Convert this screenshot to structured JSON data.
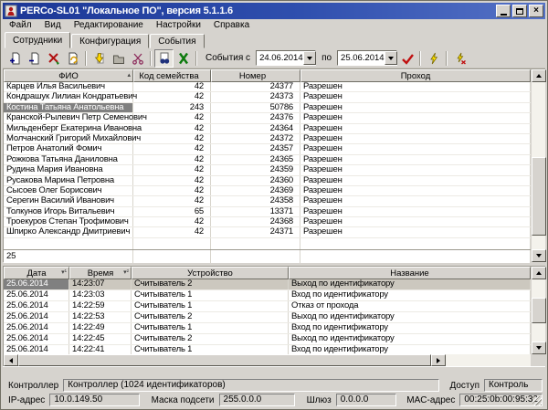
{
  "window": {
    "title": "PERCo-SL01 \"Локальное ПО\", версия 5.1.1.6",
    "controls": [
      "minimize",
      "maximize",
      "close"
    ]
  },
  "menu": {
    "items": [
      "Файл",
      "Вид",
      "Редактирование",
      "Настройки",
      "Справка"
    ]
  },
  "tabs": {
    "items": [
      {
        "label": "Сотрудники",
        "active": true
      },
      {
        "label": "Конфигурация",
        "active": false
      },
      {
        "label": "События",
        "active": false
      }
    ]
  },
  "toolbar": {
    "icons": [
      "add",
      "delete",
      "transfer",
      "edit-card",
      "load",
      "save",
      "cut",
      "show-events",
      "excel-export",
      "apply",
      "poll",
      "stop-poll"
    ],
    "events_from_label": "События с",
    "date_from": "24.06.2014",
    "to_label": "по",
    "date_to": "25.06.2014"
  },
  "employees_table": {
    "columns": [
      {
        "label": "ФИО",
        "sort": "▴"
      },
      {
        "label": "Код семейства",
        "sort": ""
      },
      {
        "label": "Номер",
        "sort": ""
      },
      {
        "label": "Проход",
        "sort": ""
      }
    ],
    "rows": [
      [
        "Карцев Илья Васильевич",
        "42",
        "24377",
        "Разрешен"
      ],
      [
        "Кондрашук Лилиан Кондратьевич",
        "42",
        "24373",
        "Разрешен"
      ],
      [
        "Костина Татьяна Анатольевна",
        "243",
        "50786",
        "Разрешен"
      ],
      [
        "Кранской-Рылевич Петр Семенович",
        "42",
        "24376",
        "Разрешен"
      ],
      [
        "Мильденберг Екатерина Ивановна",
        "42",
        "24364",
        "Разрешен"
      ],
      [
        "Молчанский Григорий Михайлович",
        "42",
        "24372",
        "Разрешен"
      ],
      [
        "Петров Анатолий Фомич",
        "42",
        "24357",
        "Разрешен"
      ],
      [
        "Рожкова Татьяна Даниловна",
        "42",
        "24365",
        "Разрешен"
      ],
      [
        "Рудина Мария Ивановна",
        "42",
        "24359",
        "Разрешен"
      ],
      [
        "Русакова Марина Петровна",
        "42",
        "24360",
        "Разрешен"
      ],
      [
        "Сысоев Олег Борисович",
        "42",
        "24369",
        "Разрешен"
      ],
      [
        "Серегин Василий Иванович",
        "42",
        "24358",
        "Разрешен"
      ],
      [
        "Толкунов Игорь Витальевич",
        "65",
        "13371",
        "Разрешен"
      ],
      [
        "Троекуров Степан Трофимович",
        "42",
        "24368",
        "Разрешен"
      ],
      [
        "Шпирко Александр Дмитриевич",
        "42",
        "24371",
        "Разрешен"
      ]
    ],
    "selected": {
      "row": 2,
      "col": 0
    },
    "row_highlight": false,
    "summary_count": "25"
  },
  "events_table": {
    "columns": [
      {
        "label": "Дата",
        "sort": "▾¹"
      },
      {
        "label": "Время",
        "sort": "▾²"
      },
      {
        "label": "Устройство",
        "sort": ""
      },
      {
        "label": "Название",
        "sort": ""
      }
    ],
    "rows": [
      [
        "25.06.2014",
        "14:23:07",
        "Считыватель 2",
        "Выход по идентификатору"
      ],
      [
        "25.06.2014",
        "14:23:03",
        "Считыватель 1",
        "Вход по идентификатору"
      ],
      [
        "25.06.2014",
        "14:22:59",
        "Считыватель 1",
        "Отказ от прохода"
      ],
      [
        "25.06.2014",
        "14:22:53",
        "Считыватель 2",
        "Выход по идентификатору"
      ],
      [
        "25.06.2014",
        "14:22:49",
        "Считыватель 1",
        "Вход по идентификатору"
      ],
      [
        "25.06.2014",
        "14:22:45",
        "Считыватель 2",
        "Выход по идентификатору"
      ],
      [
        "25.06.2014",
        "14:22:41",
        "Считыватель 1",
        "Вход по идентификатору"
      ]
    ],
    "selected": {
      "row": 0,
      "col": 0
    },
    "row_highlight": true
  },
  "status_bar": {
    "controller_label": "Контроллер",
    "controller_value": "Контроллер (1024 идентификаторов)",
    "access_label": "Доступ",
    "access_value": "Контроль",
    "ip_label": "IP-адрес",
    "ip_value": "10.0.149.50",
    "mask_label": "Маска подсети",
    "mask_value": "255.0.0.0",
    "gateway_label": "Шлюз",
    "gateway_value": "0.0.0.0",
    "mac_label": "MAC-адрес",
    "mac_value": "00:25:0b:00:95:32"
  },
  "colors": {
    "titlebar": "#2f4fae",
    "selection": "#808080",
    "accent_red": "#c01010",
    "excel_green": "#0c7a0c"
  }
}
